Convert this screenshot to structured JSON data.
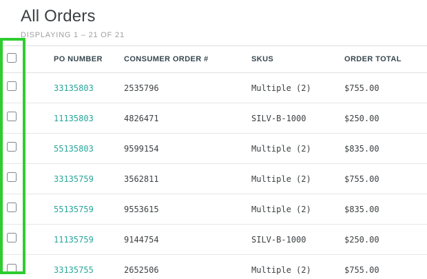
{
  "page": {
    "title": "All Orders",
    "displaying": "DISPLAYING 1 – 21 OF 21"
  },
  "table": {
    "columns": [
      "PO NUMBER",
      "CONSUMER ORDER #",
      "SKUS",
      "ORDER TOTAL"
    ],
    "rows": [
      {
        "po": "33135803",
        "consumer_order": "2535796",
        "skus": "Multiple (2)",
        "order_total": "$755.00"
      },
      {
        "po": "11135803",
        "consumer_order": "4826471",
        "skus": "SILV-B-1000",
        "order_total": "$250.00"
      },
      {
        "po": "55135803",
        "consumer_order": "9599154",
        "skus": "Multiple (2)",
        "order_total": "$835.00"
      },
      {
        "po": "33135759",
        "consumer_order": "3562811",
        "skus": "Multiple (2)",
        "order_total": "$755.00"
      },
      {
        "po": "55135759",
        "consumer_order": "9553615",
        "skus": "Multiple (2)",
        "order_total": "$835.00"
      },
      {
        "po": "11135759",
        "consumer_order": "9144754",
        "skus": "SILV-B-1000",
        "order_total": "$250.00"
      },
      {
        "po": "33135755",
        "consumer_order": "2652506",
        "skus": "Multiple (2)",
        "order_total": "$755.00"
      }
    ]
  },
  "colors": {
    "link_teal": "#26a69a",
    "highlight_green": "#2fcc2f",
    "header_text": "#37474f",
    "muted_text": "#9e9e9e"
  }
}
